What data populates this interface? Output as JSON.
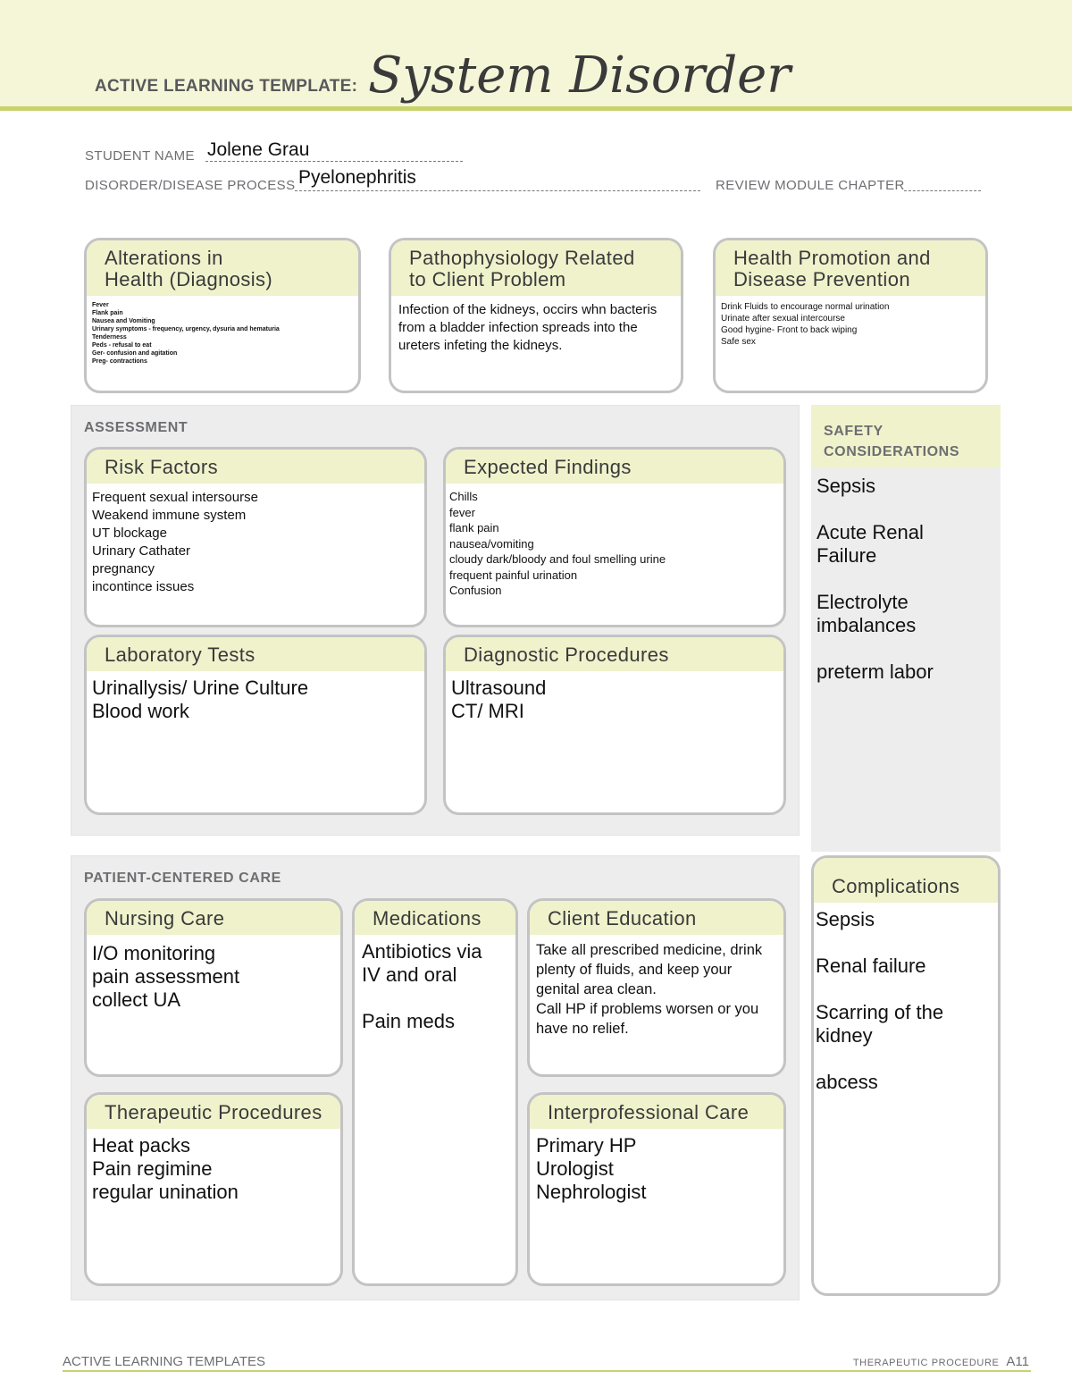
{
  "header": {
    "label": "ACTIVE LEARNING TEMPLATE:",
    "title": "System Disorder"
  },
  "fields": {
    "student_name_label": "STUDENT NAME",
    "student_name": "Jolene Grau",
    "disorder_label": "DISORDER/DISEASE PROCESS",
    "disorder": "Pyelonephritis",
    "chapter_label": "REVIEW MODULE CHAPTER",
    "chapter": ""
  },
  "top": {
    "alterations": {
      "title": "Alterations in\nHealth (Diagnosis)",
      "body": "Fever\nFlank pain\nNausea and Vomiting\nUrinary symptoms - frequency, urgency, dysuria and hematuria\nTenderness\nPeds - refusal to eat\nGer- confusion and agitation\nPreg- contractions"
    },
    "patho": {
      "title": "Pathophysiology Related\nto Client Problem",
      "body": "Infection of the kidneys, occirs whn bacteris from a bladder infection spreads into the ureters infeting the kidneys."
    },
    "health": {
      "title": "Health Promotion and\nDisease Prevention",
      "body": "Drink Fluids to encourage normal urination\nUrinate after sexual intercourse\nGood hygine- Front to back wiping\nSafe sex"
    }
  },
  "assessment": {
    "title": "ASSESSMENT",
    "risk": {
      "title": "Risk Factors",
      "body": "Frequent sexual intersourse\nWeakend immune system\nUT blockage\nUrinary Cathater\npregnancy\nincontince issues"
    },
    "findings": {
      "title": "Expected Findings",
      "body": "Chills\nfever\nflank pain\nnausea/vomiting\ncloudy dark/bloody and foul smelling urine\nfrequent painful urination\nConfusion"
    },
    "labs": {
      "title": "Laboratory Tests",
      "body": "Urinallysis/ Urine Culture\nBlood work"
    },
    "diag": {
      "title": "Diagnostic Procedures",
      "body": "Ultrasound\nCT/ MRI"
    }
  },
  "safety": {
    "title": "SAFETY\nCONSIDERATIONS",
    "body": "Sepsis\n\nAcute Renal\nFailure\n\nElectrolyte\nimbalances\n\npreterm labor"
  },
  "care": {
    "title": "PATIENT-CENTERED CARE",
    "nursing": {
      "title": "Nursing Care",
      "body": "I/O monitoring\npain assessment\ncollect UA"
    },
    "meds": {
      "title": "Medications",
      "body": "Antibiotics via\nIV and oral\n\nPain meds"
    },
    "edu": {
      "title": "Client Education",
      "body": "Take all prescribed medicine, drink plenty of fluids, and keep your genital area clean.\nCall HP if problems worsen or you have no relief."
    },
    "thera": {
      "title": "Therapeutic Procedures",
      "body": "Heat packs\nPain regimine\nregular unination"
    },
    "inter": {
      "title": "Interprofessional Care",
      "body": "Primary HP\nUrologist\nNephrologist"
    }
  },
  "complications": {
    "title": "Complications",
    "body": "Sepsis\n\nRenal failure\n\nScarring of the\nkidney\n\nabcess"
  },
  "footer": {
    "left": "ACTIVE LEARNING TEMPLATES",
    "right_label": "THERAPEUTIC PROCEDURE",
    "page": "A11"
  },
  "colors": {
    "accent": "#c9d36d",
    "band": "#f5f6d8",
    "box_header": "#f0f2cc",
    "section_bg": "#ededed"
  }
}
